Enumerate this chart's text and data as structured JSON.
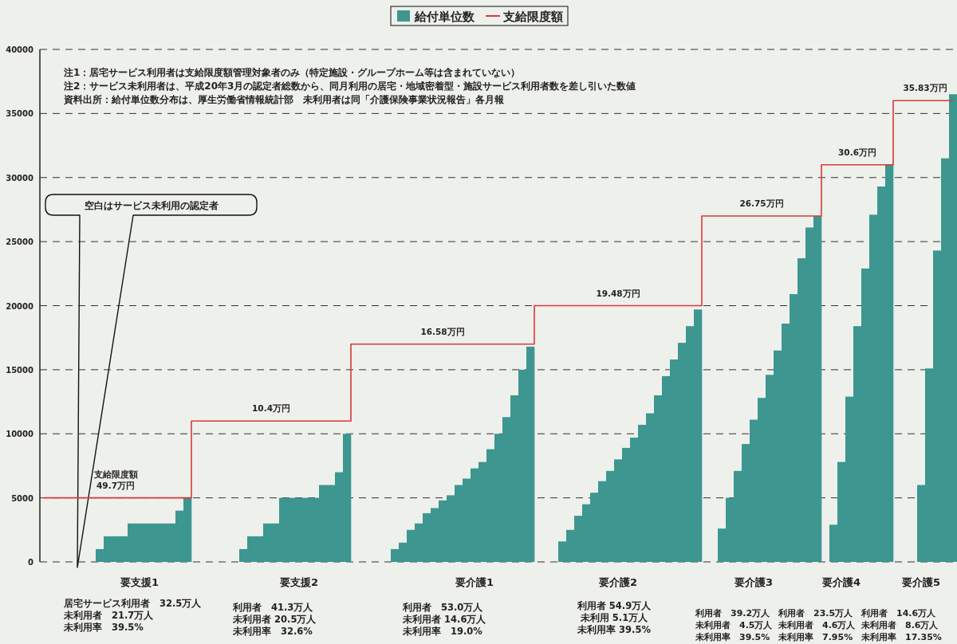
{
  "chart_data": {
    "type": "bar",
    "categories": [
      null,
      null,
      null,
      null,
      null,
      null,
      null,
      null,
      null,
      null,
      null,
      null,
      "要支援1",
      null,
      null,
      null,
      null,
      null,
      null,
      null,
      null,
      null,
      null,
      null,
      null,
      null,
      null,
      null,
      null,
      null,
      null,
      null,
      "要支援2",
      null,
      null,
      null,
      null,
      null,
      null,
      null,
      null,
      null,
      null,
      null,
      null,
      null,
      null,
      null,
      null,
      null,
      null,
      null,
      null,
      null,
      "要介護1",
      null,
      null,
      null,
      null,
      null,
      null,
      null,
      null,
      null,
      null,
      null,
      null,
      null,
      null,
      null,
      null,
      null,
      "要介護2",
      null,
      null,
      null,
      null,
      null,
      null,
      null,
      null,
      null,
      null,
      null,
      null,
      null,
      null,
      null,
      null,
      "要介護3",
      null,
      null,
      null,
      null,
      null,
      null,
      null,
      null,
      null,
      null,
      "要介護4",
      null,
      null,
      null,
      null,
      null,
      null,
      null,
      null,
      null,
      "要介護5",
      null,
      null,
      null,
      null
    ],
    "series": [
      {
        "name": "給付単位数",
        "color": "#3d9690",
        "values": [
          null,
          null,
          null,
          null,
          null,
          null,
          null,
          1000,
          2000,
          2000,
          2000,
          3000,
          3000,
          3000,
          3000,
          3000,
          3000,
          4000,
          5000,
          null,
          null,
          null,
          null,
          null,
          null,
          1000,
          2000,
          2000,
          3000,
          3000,
          5000,
          5000,
          5000,
          5000,
          5000,
          6000,
          6000,
          7000,
          10000,
          null,
          null,
          null,
          null,
          null,
          1000,
          1500,
          2500,
          3000,
          3800,
          4200,
          4800,
          5200,
          6000,
          6500,
          7300,
          7800,
          8800,
          10000,
          11300,
          13000,
          15000,
          16800,
          null,
          null,
          null,
          1600,
          2500,
          3600,
          4500,
          5400,
          6300,
          7100,
          8000,
          8900,
          9700,
          10700,
          11600,
          13000,
          14500,
          15800,
          17100,
          18400,
          19700,
          null,
          null,
          2600,
          5000,
          7100,
          9200,
          11100,
          12800,
          14600,
          16500,
          18600,
          20900,
          23700,
          26100,
          27000,
          null,
          2900,
          7800,
          12900,
          18400,
          22900,
          27100,
          29300,
          31000,
          null,
          null,
          null,
          6000,
          15100,
          24300,
          31500,
          36500
        ]
      },
      {
        "name": "支給限度額",
        "type": "step",
        "color": "#d9383a",
        "values": [
          5000,
          5000,
          5000,
          5000,
          5000,
          5000,
          5000,
          5000,
          5000,
          5000,
          5000,
          5000,
          5000,
          5000,
          5000,
          5000,
          5000,
          5000,
          5000,
          11000,
          11000,
          11000,
          11000,
          11000,
          11000,
          11000,
          11000,
          11000,
          11000,
          11000,
          11000,
          11000,
          11000,
          11000,
          11000,
          11000,
          11000,
          11000,
          11000,
          17000,
          17000,
          17000,
          17000,
          17000,
          17000,
          17000,
          17000,
          17000,
          17000,
          17000,
          17000,
          17000,
          17000,
          17000,
          17000,
          17000,
          17000,
          17000,
          17000,
          17000,
          17000,
          17000,
          20000,
          20000,
          20000,
          20000,
          20000,
          20000,
          20000,
          20000,
          20000,
          20000,
          20000,
          20000,
          20000,
          20000,
          20000,
          20000,
          20000,
          20000,
          20000,
          20000,
          20000,
          27000,
          27000,
          27000,
          27000,
          27000,
          27000,
          27000,
          27000,
          27000,
          27000,
          27000,
          27000,
          27000,
          27000,
          27000,
          31000,
          31000,
          31000,
          31000,
          31000,
          31000,
          31000,
          31000,
          31000,
          36000,
          36000,
          36000,
          36000,
          36000,
          36000,
          36000,
          36000
        ]
      }
    ],
    "ylim": [
      0,
      40000
    ],
    "yticks": [
      0,
      5000,
      10000,
      15000,
      20000,
      25000,
      30000,
      35000,
      40000
    ],
    "grid": "y",
    "legend": "top",
    "annotations": [
      "注1：居宅サービス利用者は支給限度額管理対象者のみ（特定施設・グループホーム等は含まれていない）",
      "注2：サービス未利用者は、平成20年3月の認定者総数から、同月利用の居宅・地域密着型・施設サービス利用者数を差し引いた数値",
      "資料出所：給付単位数分布は、厚生労働省情報統計部　未利用者は同「介護保険事業状況報告」各月報",
      "空白はサービス未利用の認定者",
      {
        "text": "支給限度額",
        "y": 5000
      },
      {
        "text": "49.7万円",
        "y": 5000
      },
      {
        "text": "10.4万円",
        "y": 11000
      },
      {
        "text": "16.58万円",
        "y": 17000
      },
      {
        "text": "19.48万円",
        "y": 20000
      },
      {
        "text": "26.75万円",
        "y": 27000
      },
      {
        "text": "30.6万円",
        "y": 31000
      },
      {
        "text": "35.83万円",
        "y": 36000
      },
      "居宅サービス利用者　32.5万人",
      "未利用者　21.7万人",
      "未利用率　39.5%",
      "利用者　41.3万人",
      "未利用者 20.5万人",
      "未利用率　32.6%",
      "利用者　53.0万人",
      "未利用者 14.6万人",
      "未利用率　19.0%",
      "利用者 54.9万人",
      "未利用 5.1万人",
      "未利用率 39.5%",
      "利用者　39.2万人",
      "未利用者　4.5万人",
      "未利用率　39.5%",
      "利用者　23.5万人",
      "未利用者　4.6万人",
      "未利用率　7.95%",
      "利用者　14.6万人",
      "未利用者　8.6万人",
      "未利用率　17.35%"
    ]
  }
}
